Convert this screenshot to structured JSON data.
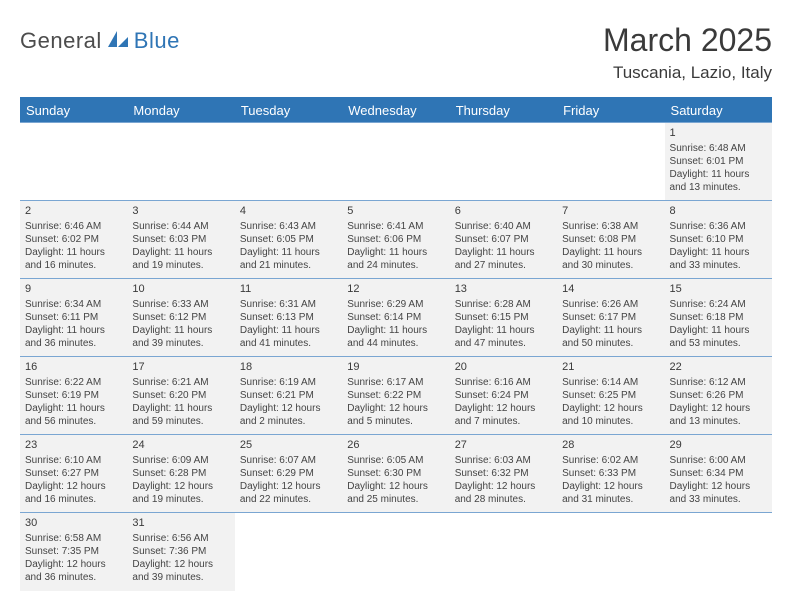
{
  "logo": {
    "part1": "General",
    "part2": "Blue"
  },
  "title": "March 2025",
  "location": "Tuscania, Lazio, Italy",
  "colors": {
    "header_bg": "#2f75b5",
    "header_text": "#ffffff",
    "cell_bg": "#f2f2f2",
    "cell_border": "#7aa6d2",
    "body_text": "#3a3a3a",
    "logo_accent": "#2f75b5"
  },
  "weekdays": [
    "Sunday",
    "Monday",
    "Tuesday",
    "Wednesday",
    "Thursday",
    "Friday",
    "Saturday"
  ],
  "weeks": [
    [
      null,
      null,
      null,
      null,
      null,
      null,
      {
        "day": "1",
        "sunrise": "Sunrise: 6:48 AM",
        "sunset": "Sunset: 6:01 PM",
        "daylight1": "Daylight: 11 hours",
        "daylight2": "and 13 minutes."
      }
    ],
    [
      {
        "day": "2",
        "sunrise": "Sunrise: 6:46 AM",
        "sunset": "Sunset: 6:02 PM",
        "daylight1": "Daylight: 11 hours",
        "daylight2": "and 16 minutes."
      },
      {
        "day": "3",
        "sunrise": "Sunrise: 6:44 AM",
        "sunset": "Sunset: 6:03 PM",
        "daylight1": "Daylight: 11 hours",
        "daylight2": "and 19 minutes."
      },
      {
        "day": "4",
        "sunrise": "Sunrise: 6:43 AM",
        "sunset": "Sunset: 6:05 PM",
        "daylight1": "Daylight: 11 hours",
        "daylight2": "and 21 minutes."
      },
      {
        "day": "5",
        "sunrise": "Sunrise: 6:41 AM",
        "sunset": "Sunset: 6:06 PM",
        "daylight1": "Daylight: 11 hours",
        "daylight2": "and 24 minutes."
      },
      {
        "day": "6",
        "sunrise": "Sunrise: 6:40 AM",
        "sunset": "Sunset: 6:07 PM",
        "daylight1": "Daylight: 11 hours",
        "daylight2": "and 27 minutes."
      },
      {
        "day": "7",
        "sunrise": "Sunrise: 6:38 AM",
        "sunset": "Sunset: 6:08 PM",
        "daylight1": "Daylight: 11 hours",
        "daylight2": "and 30 minutes."
      },
      {
        "day": "8",
        "sunrise": "Sunrise: 6:36 AM",
        "sunset": "Sunset: 6:10 PM",
        "daylight1": "Daylight: 11 hours",
        "daylight2": "and 33 minutes."
      }
    ],
    [
      {
        "day": "9",
        "sunrise": "Sunrise: 6:34 AM",
        "sunset": "Sunset: 6:11 PM",
        "daylight1": "Daylight: 11 hours",
        "daylight2": "and 36 minutes."
      },
      {
        "day": "10",
        "sunrise": "Sunrise: 6:33 AM",
        "sunset": "Sunset: 6:12 PM",
        "daylight1": "Daylight: 11 hours",
        "daylight2": "and 39 minutes."
      },
      {
        "day": "11",
        "sunrise": "Sunrise: 6:31 AM",
        "sunset": "Sunset: 6:13 PM",
        "daylight1": "Daylight: 11 hours",
        "daylight2": "and 41 minutes."
      },
      {
        "day": "12",
        "sunrise": "Sunrise: 6:29 AM",
        "sunset": "Sunset: 6:14 PM",
        "daylight1": "Daylight: 11 hours",
        "daylight2": "and 44 minutes."
      },
      {
        "day": "13",
        "sunrise": "Sunrise: 6:28 AM",
        "sunset": "Sunset: 6:15 PM",
        "daylight1": "Daylight: 11 hours",
        "daylight2": "and 47 minutes."
      },
      {
        "day": "14",
        "sunrise": "Sunrise: 6:26 AM",
        "sunset": "Sunset: 6:17 PM",
        "daylight1": "Daylight: 11 hours",
        "daylight2": "and 50 minutes."
      },
      {
        "day": "15",
        "sunrise": "Sunrise: 6:24 AM",
        "sunset": "Sunset: 6:18 PM",
        "daylight1": "Daylight: 11 hours",
        "daylight2": "and 53 minutes."
      }
    ],
    [
      {
        "day": "16",
        "sunrise": "Sunrise: 6:22 AM",
        "sunset": "Sunset: 6:19 PM",
        "daylight1": "Daylight: 11 hours",
        "daylight2": "and 56 minutes."
      },
      {
        "day": "17",
        "sunrise": "Sunrise: 6:21 AM",
        "sunset": "Sunset: 6:20 PM",
        "daylight1": "Daylight: 11 hours",
        "daylight2": "and 59 minutes."
      },
      {
        "day": "18",
        "sunrise": "Sunrise: 6:19 AM",
        "sunset": "Sunset: 6:21 PM",
        "daylight1": "Daylight: 12 hours",
        "daylight2": "and 2 minutes."
      },
      {
        "day": "19",
        "sunrise": "Sunrise: 6:17 AM",
        "sunset": "Sunset: 6:22 PM",
        "daylight1": "Daylight: 12 hours",
        "daylight2": "and 5 minutes."
      },
      {
        "day": "20",
        "sunrise": "Sunrise: 6:16 AM",
        "sunset": "Sunset: 6:24 PM",
        "daylight1": "Daylight: 12 hours",
        "daylight2": "and 7 minutes."
      },
      {
        "day": "21",
        "sunrise": "Sunrise: 6:14 AM",
        "sunset": "Sunset: 6:25 PM",
        "daylight1": "Daylight: 12 hours",
        "daylight2": "and 10 minutes."
      },
      {
        "day": "22",
        "sunrise": "Sunrise: 6:12 AM",
        "sunset": "Sunset: 6:26 PM",
        "daylight1": "Daylight: 12 hours",
        "daylight2": "and 13 minutes."
      }
    ],
    [
      {
        "day": "23",
        "sunrise": "Sunrise: 6:10 AM",
        "sunset": "Sunset: 6:27 PM",
        "daylight1": "Daylight: 12 hours",
        "daylight2": "and 16 minutes."
      },
      {
        "day": "24",
        "sunrise": "Sunrise: 6:09 AM",
        "sunset": "Sunset: 6:28 PM",
        "daylight1": "Daylight: 12 hours",
        "daylight2": "and 19 minutes."
      },
      {
        "day": "25",
        "sunrise": "Sunrise: 6:07 AM",
        "sunset": "Sunset: 6:29 PM",
        "daylight1": "Daylight: 12 hours",
        "daylight2": "and 22 minutes."
      },
      {
        "day": "26",
        "sunrise": "Sunrise: 6:05 AM",
        "sunset": "Sunset: 6:30 PM",
        "daylight1": "Daylight: 12 hours",
        "daylight2": "and 25 minutes."
      },
      {
        "day": "27",
        "sunrise": "Sunrise: 6:03 AM",
        "sunset": "Sunset: 6:32 PM",
        "daylight1": "Daylight: 12 hours",
        "daylight2": "and 28 minutes."
      },
      {
        "day": "28",
        "sunrise": "Sunrise: 6:02 AM",
        "sunset": "Sunset: 6:33 PM",
        "daylight1": "Daylight: 12 hours",
        "daylight2": "and 31 minutes."
      },
      {
        "day": "29",
        "sunrise": "Sunrise: 6:00 AM",
        "sunset": "Sunset: 6:34 PM",
        "daylight1": "Daylight: 12 hours",
        "daylight2": "and 33 minutes."
      }
    ],
    [
      {
        "day": "30",
        "sunrise": "Sunrise: 6:58 AM",
        "sunset": "Sunset: 7:35 PM",
        "daylight1": "Daylight: 12 hours",
        "daylight2": "and 36 minutes."
      },
      {
        "day": "31",
        "sunrise": "Sunrise: 6:56 AM",
        "sunset": "Sunset: 7:36 PM",
        "daylight1": "Daylight: 12 hours",
        "daylight2": "and 39 minutes."
      },
      null,
      null,
      null,
      null,
      null
    ]
  ]
}
